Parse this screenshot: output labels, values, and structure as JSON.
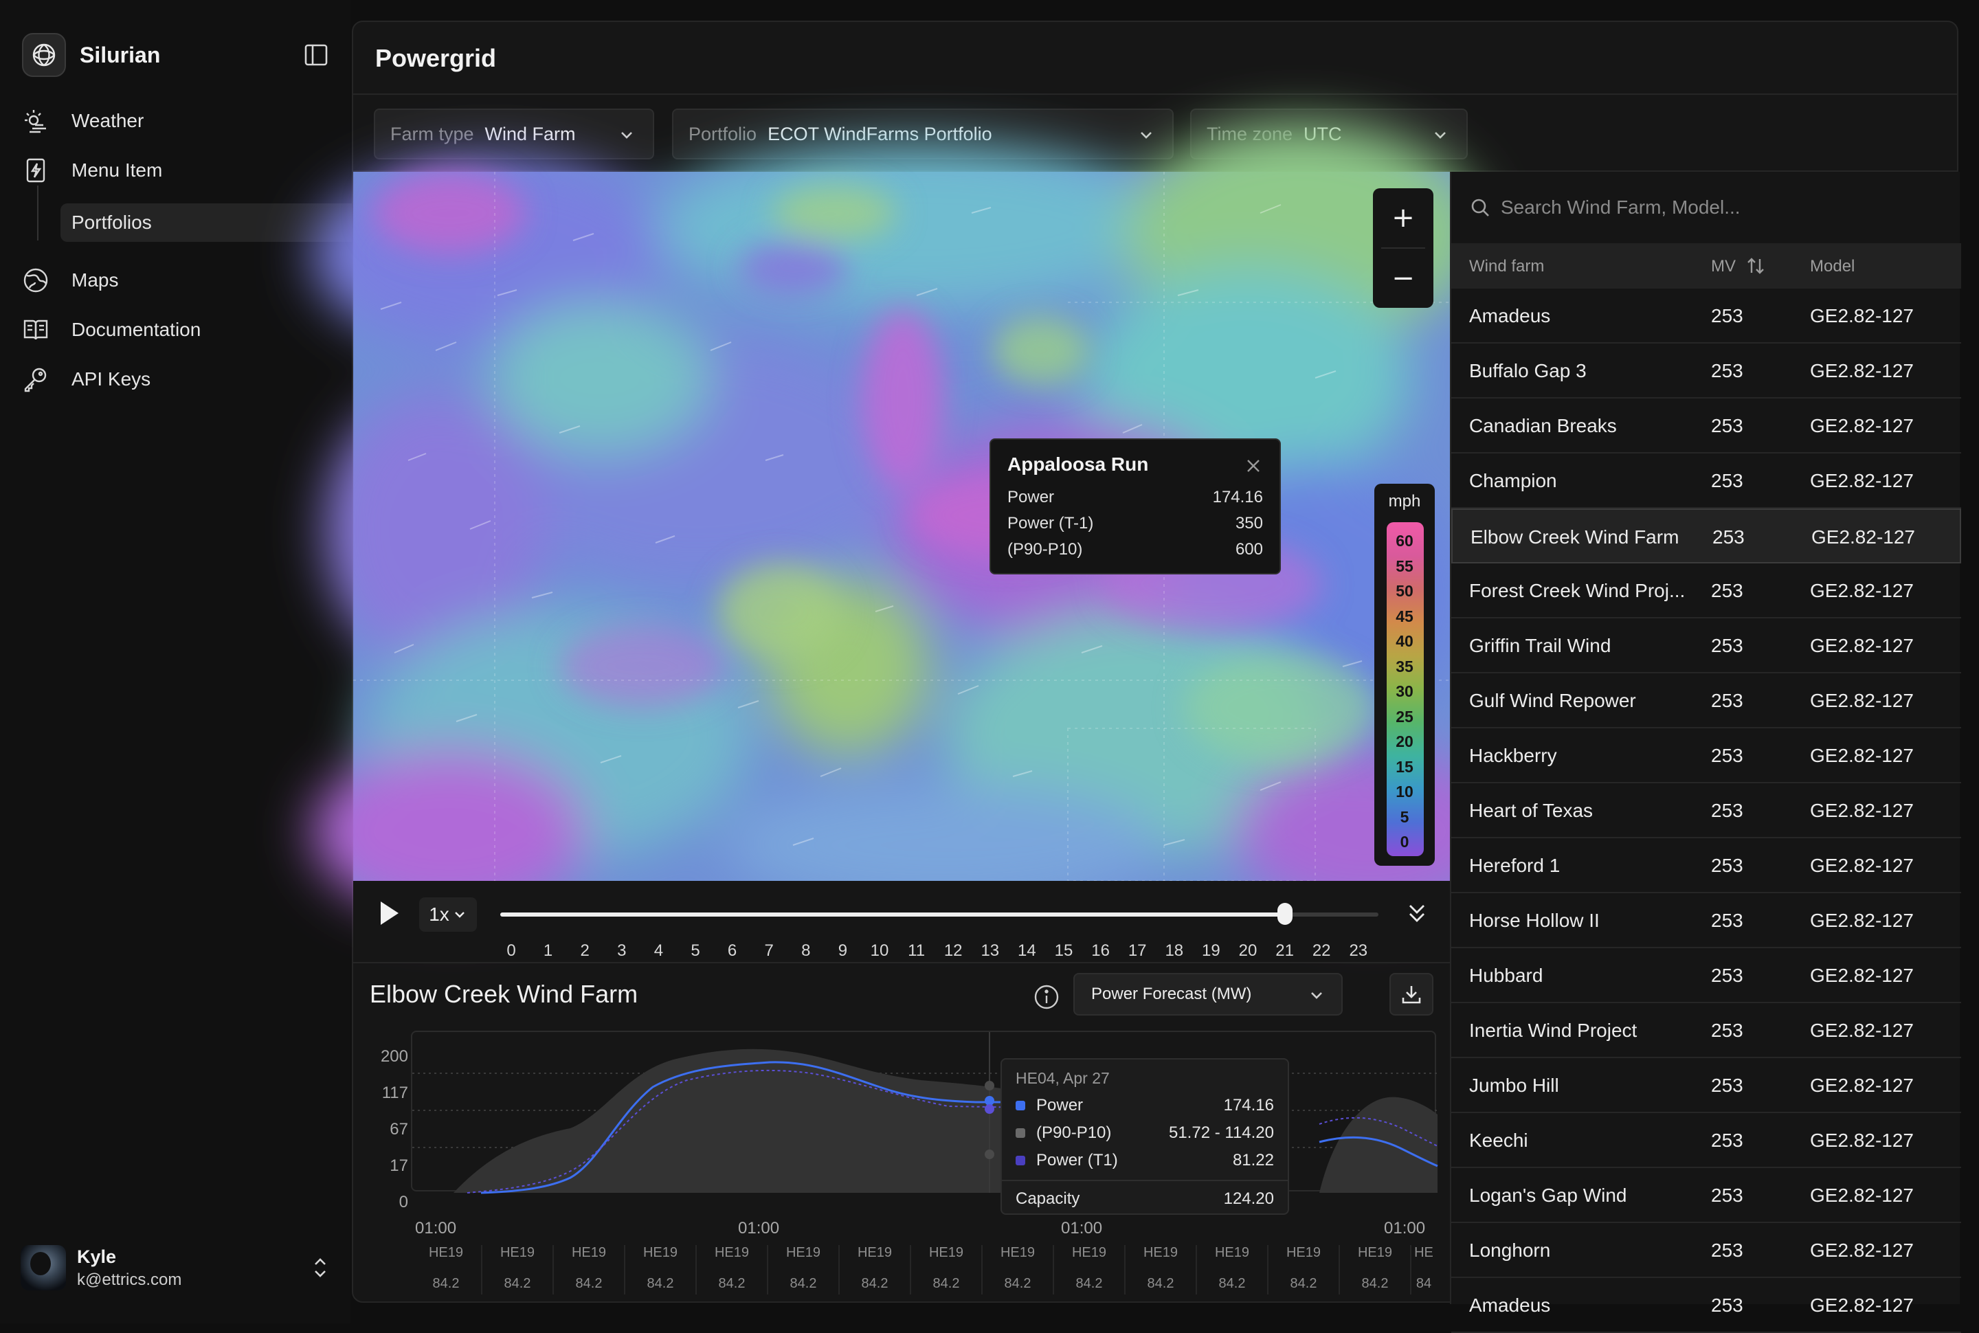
{
  "app": {
    "name": "Silurian",
    "page_title": "Powergrid"
  },
  "sidebar": {
    "items": [
      {
        "label": "Weather",
        "icon": "sun-icon"
      },
      {
        "label": "Menu Item",
        "icon": "bolt-icon"
      }
    ],
    "sub_items": [
      {
        "label": "Portfolios"
      }
    ],
    "items2": [
      {
        "label": "Maps",
        "icon": "globe-icon"
      },
      {
        "label": "Documentation",
        "icon": "book-icon"
      },
      {
        "label": "API Keys",
        "icon": "key-icon"
      }
    ]
  },
  "user": {
    "name": "Kyle",
    "email": "k@ettrics.com"
  },
  "filters": [
    {
      "key": "Farm type",
      "value": "Wind Farm"
    },
    {
      "key": "Portfolio",
      "value": "ECOT WindFarms Portfolio"
    },
    {
      "key": "Time zone",
      "value": "UTC"
    }
  ],
  "map": {
    "zoom_in": "+",
    "zoom_out": "−",
    "tooltip": {
      "title": "Appaloosa Run",
      "rows": [
        {
          "label": "Power",
          "value": "174.16"
        },
        {
          "label": "Power (T-1)",
          "value": "350"
        },
        {
          "label": "(P90-P10)",
          "value": "600"
        }
      ]
    },
    "legend": {
      "unit": "mph",
      "values": [
        "60",
        "55",
        "50",
        "45",
        "40",
        "35",
        "30",
        "25",
        "20",
        "15",
        "10",
        "5",
        "0"
      ]
    }
  },
  "timeline": {
    "speed": "1x",
    "ticks": [
      "0",
      "1",
      "2",
      "3",
      "4",
      "5",
      "6",
      "7",
      "8",
      "9",
      "10",
      "11",
      "12",
      "13",
      "14",
      "15",
      "16",
      "17",
      "18",
      "19",
      "20",
      "21",
      "22",
      "23"
    ],
    "current_hour": 21
  },
  "chart": {
    "title": "Elbow Creek Wind Farm",
    "metric_select": "Power Forecast (MW)",
    "y_ticks": [
      "200",
      "117",
      "67",
      "17",
      "0"
    ],
    "x_major": [
      "01:00",
      "01:00",
      "01:00",
      "01:00"
    ],
    "hour_labels": [
      "HE19",
      "HE19",
      "HE19",
      "HE19",
      "HE19",
      "HE19",
      "HE19",
      "HE19",
      "HE19",
      "HE19",
      "HE19",
      "HE19",
      "HE19",
      "HE19",
      "HE"
    ],
    "hour_values": [
      "84.2",
      "84.2",
      "84.2",
      "84.2",
      "84.2",
      "84.2",
      "84.2",
      "84.2",
      "84.2",
      "84.2",
      "84.2",
      "84.2",
      "84.2",
      "84.2",
      "84"
    ],
    "tooltip": {
      "header": "HE04, Apr 27",
      "rows": [
        {
          "label": "Power",
          "value": "174.16",
          "color": "#3d6ff0"
        },
        {
          "label": "(P90-P10)",
          "value": "51.72 - 114.20",
          "color": "#6a6a6a"
        },
        {
          "label": "Power (T1)",
          "value": "81.22",
          "color": "#4a3fc0"
        }
      ],
      "capacity_label": "Capacity",
      "capacity_value": "124.20"
    },
    "colors": {
      "power": "#3d6ff0",
      "band": "#3a3a3a",
      "t1": "#5b4fd6"
    }
  },
  "table": {
    "search_placeholder": "Search Wind Farm, Model...",
    "columns": [
      "Wind farm",
      "MV",
      "Model"
    ],
    "selected_index": 4,
    "rows": [
      {
        "farm": "Amadeus",
        "mv": "253",
        "model": "GE2.82-127"
      },
      {
        "farm": "Buffalo Gap 3",
        "mv": "253",
        "model": "GE2.82-127"
      },
      {
        "farm": "Canadian Breaks",
        "mv": "253",
        "model": "GE2.82-127"
      },
      {
        "farm": "Champion",
        "mv": "253",
        "model": "GE2.82-127"
      },
      {
        "farm": "Elbow Creek Wind Farm",
        "mv": "253",
        "model": "GE2.82-127"
      },
      {
        "farm": "Forest Creek Wind Proj...",
        "mv": "253",
        "model": "GE2.82-127"
      },
      {
        "farm": "Griffin Trail Wind",
        "mv": "253",
        "model": "GE2.82-127"
      },
      {
        "farm": "Gulf Wind Repower",
        "mv": "253",
        "model": "GE2.82-127"
      },
      {
        "farm": "Hackberry",
        "mv": "253",
        "model": "GE2.82-127"
      },
      {
        "farm": "Heart of Texas",
        "mv": "253",
        "model": "GE2.82-127"
      },
      {
        "farm": "Hereford 1",
        "mv": "253",
        "model": "GE2.82-127"
      },
      {
        "farm": "Horse Hollow II",
        "mv": "253",
        "model": "GE2.82-127"
      },
      {
        "farm": "Hubbard",
        "mv": "253",
        "model": "GE2.82-127"
      },
      {
        "farm": "Inertia Wind Project",
        "mv": "253",
        "model": "GE2.82-127"
      },
      {
        "farm": "Jumbo Hill",
        "mv": "253",
        "model": "GE2.82-127"
      },
      {
        "farm": "Keechi",
        "mv": "253",
        "model": "GE2.82-127"
      },
      {
        "farm": "Logan's Gap Wind",
        "mv": "253",
        "model": "GE2.82-127"
      },
      {
        "farm": "Longhorn",
        "mv": "253",
        "model": "GE2.82-127"
      },
      {
        "farm": "Amadeus",
        "mv": "253",
        "model": "GE2.82-127"
      }
    ]
  }
}
